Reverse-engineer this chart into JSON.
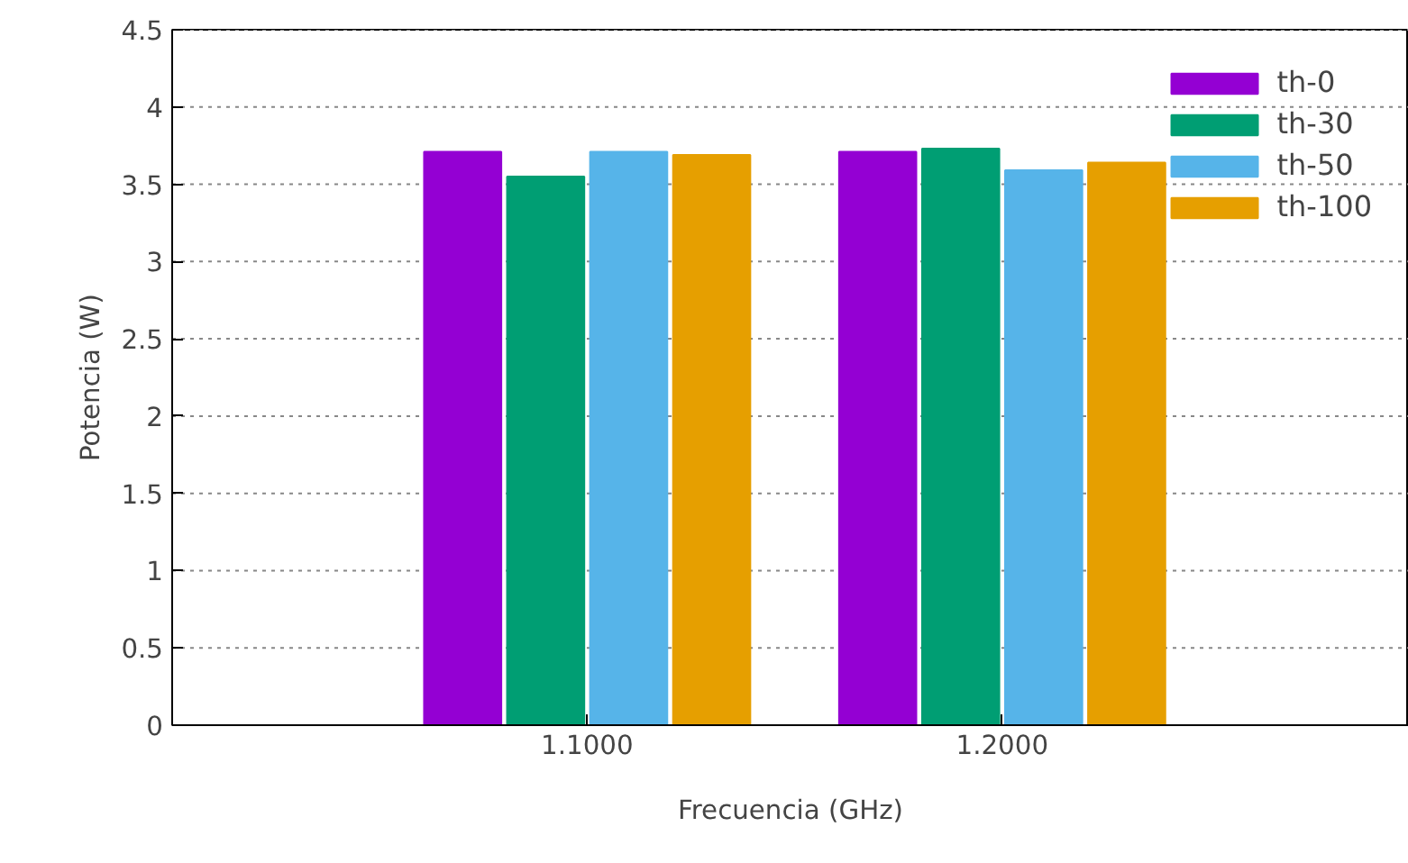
{
  "chart_data": {
    "type": "bar",
    "xlabel": "Frecuencia (GHz)",
    "ylabel": "Potencia (W)",
    "categories": [
      "1.1000",
      "1.2000"
    ],
    "series": [
      {
        "name": "th-0",
        "color": "#9400d3",
        "values": [
          3.71,
          3.71
        ]
      },
      {
        "name": "th-30",
        "color": "#009e73",
        "values": [
          3.55,
          3.73
        ]
      },
      {
        "name": "th-50",
        "color": "#56b4e9",
        "values": [
          3.71,
          3.59
        ]
      },
      {
        "name": "th-100",
        "color": "#e69f00",
        "values": [
          3.69,
          3.64
        ]
      }
    ],
    "ylim": [
      0,
      4.5
    ],
    "yticks": [
      0,
      0.5,
      1,
      1.5,
      2,
      2.5,
      3,
      3.5,
      4,
      4.5
    ],
    "grid": "y",
    "legend": "top right"
  }
}
